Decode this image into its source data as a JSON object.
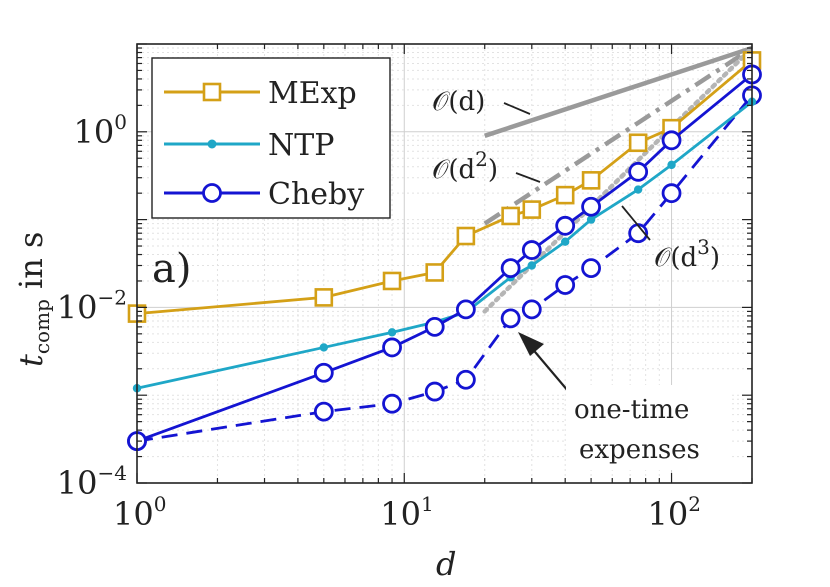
{
  "chart_data": {
    "type": "line",
    "xscale": "log",
    "yscale": "log",
    "xlim": [
      1,
      200
    ],
    "ylim": [
      0.0001,
      10
    ],
    "xlabel": "d",
    "ylabel": {
      "main": "t",
      "sub": "comp",
      "suffix": " in s"
    },
    "xticks": [
      {
        "value": 1,
        "base": "10",
        "exp": "0"
      },
      {
        "value": 10,
        "base": "10",
        "exp": "1"
      },
      {
        "value": 100,
        "base": "10",
        "exp": "2"
      }
    ],
    "yticks": [
      {
        "value": 0.0001,
        "base": "10",
        "exp": "−4"
      },
      {
        "value": 0.01,
        "base": "10",
        "exp": "−2"
      },
      {
        "value": 1,
        "base": "10",
        "exp": "0"
      }
    ],
    "grid": true,
    "legend_position": "top-left",
    "panel_label": "a)",
    "series": [
      {
        "name": "MExp",
        "color": "#D4A017",
        "marker": "square",
        "dash": "solid",
        "in_legend": true,
        "x": [
          1,
          5,
          9,
          13,
          17,
          25,
          30,
          40,
          50,
          75,
          100,
          200
        ],
        "y": [
          0.0085,
          0.013,
          0.02,
          0.025,
          0.065,
          0.11,
          0.13,
          0.19,
          0.28,
          0.75,
          1.1,
          6.5
        ]
      },
      {
        "name": "NTP",
        "color": "#1FA7C7",
        "marker": "dot",
        "dash": "solid",
        "in_legend": true,
        "x": [
          1,
          5,
          9,
          13,
          17,
          25,
          30,
          40,
          50,
          75,
          100,
          200
        ],
        "y": [
          0.0012,
          0.0035,
          0.0052,
          0.0068,
          0.0088,
          0.022,
          0.03,
          0.056,
          0.1,
          0.22,
          0.42,
          2.2
        ]
      },
      {
        "name": "Cheby",
        "color": "#1414D2",
        "marker": "circle",
        "dash": "solid",
        "in_legend": true,
        "x": [
          1,
          5,
          9,
          13,
          17,
          25,
          30,
          40,
          50,
          75,
          100,
          200
        ],
        "y": [
          0.0003,
          0.0018,
          0.0035,
          0.006,
          0.0095,
          0.028,
          0.045,
          0.085,
          0.14,
          0.35,
          0.8,
          4.5
        ]
      },
      {
        "name": "Cheby one-time expenses",
        "color": "#1414D2",
        "marker": "circle",
        "dash": "dashed",
        "in_legend": false,
        "x": [
          1,
          5,
          9,
          13,
          17,
          25,
          30,
          40,
          50,
          75,
          100,
          200
        ],
        "y": [
          0.0003,
          0.00065,
          0.0008,
          0.0011,
          0.0015,
          0.0075,
          0.0095,
          0.018,
          0.028,
          0.07,
          0.2,
          2.6
        ]
      }
    ],
    "reference_lines": [
      {
        "label_main": "𝒪(d)",
        "color": "#9A9A9A",
        "dash": "solid",
        "x": [
          20,
          200
        ],
        "y": [
          0.9,
          9.0
        ]
      },
      {
        "label_main": "𝒪(d",
        "label_exp": "2",
        "label_close": ")",
        "color": "#9A9A9A",
        "dash": "dashdot",
        "x": [
          20,
          200
        ],
        "y": [
          0.09,
          9.0
        ]
      },
      {
        "label_main": "𝒪(d",
        "label_exp": "3",
        "label_close": ")",
        "color": "#B5B5B5",
        "dash": "dotted",
        "x": [
          20,
          200
        ],
        "y": [
          0.009,
          9.0
        ]
      }
    ],
    "annotations": [
      {
        "name": "annotation-one-time-expenses",
        "lines": [
          "one-time",
          "expenses"
        ]
      }
    ]
  }
}
